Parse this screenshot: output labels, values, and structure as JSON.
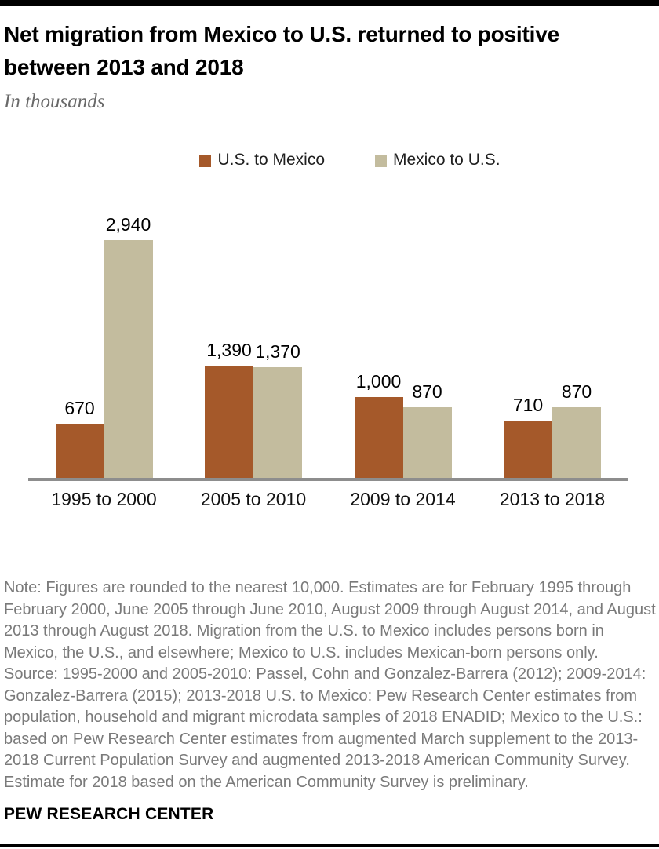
{
  "header": {
    "title": "Net migration from Mexico to U.S. returned to positive between 2013 and 2018",
    "subtitle": "In thousands"
  },
  "chart_data": {
    "type": "bar",
    "title": "Net migration from Mexico to U.S. returned to positive between 2013 and 2018",
    "subtitle": "In thousands",
    "categories": [
      "1995 to 2000",
      "2005 to 2010",
      "2009 to 2014",
      "2013 to 2018"
    ],
    "series": [
      {
        "name": "U.S. to Mexico",
        "color": "#a5592a",
        "values": [
          670,
          1390,
          1000,
          710
        ]
      },
      {
        "name": "Mexico to U.S.",
        "color": "#c3bc9e",
        "values": [
          2940,
          1370,
          870,
          870
        ]
      }
    ],
    "value_labels": [
      [
        "670",
        "1,390",
        "1,000",
        "710"
      ],
      [
        "2,940",
        "1,370",
        "870",
        "870"
      ]
    ],
    "xlabel": "",
    "ylabel": "In thousands",
    "ylim": [
      0,
      2940
    ],
    "grid": false,
    "legend_position": "top",
    "axis_line_color": "#8d8d8d"
  },
  "footer": {
    "note": "Note: Figures are rounded to the nearest 10,000. Estimates are for February 1995 through February 2000, June 2005 through June 2010, August 2009 through August 2014, and August 2013 through August 2018. Migration from the U.S. to Mexico includes persons born in Mexico, the U.S., and elsewhere; Mexico to U.S. includes Mexican-born persons only.",
    "source": "Source: 1995-2000 and 2005-2010: Passel, Cohn and Gonzalez-Barrera (2012); 2009-2014: Gonzalez-Barrera (2015); 2013-2018 U.S. to Mexico: Pew Research Center estimates from population, household and migrant microdata samples of 2018 ENADID; Mexico to the U.S.: based on Pew Research Center estimates from augmented March supplement to the 2013-2018 Current Population Survey and augmented 2013-2018 American Community Survey. Estimate for 2018 based on the American Community Survey is preliminary.",
    "brand": "PEW RESEARCH CENTER"
  }
}
